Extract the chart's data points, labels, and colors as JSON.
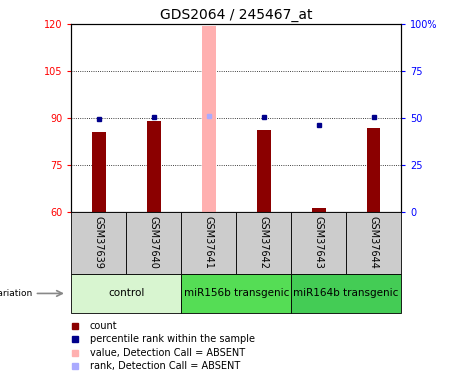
{
  "title": "GDS2064 / 245467_at",
  "samples": [
    "GSM37639",
    "GSM37640",
    "GSM37641",
    "GSM37642",
    "GSM37643",
    "GSM37644"
  ],
  "count_values": [
    85.5,
    89.2,
    119.5,
    86.2,
    61.2,
    87.0
  ],
  "rank_values": [
    49.5,
    50.5,
    51.0,
    50.5,
    46.5,
    50.5
  ],
  "absent_flags": [
    false,
    false,
    true,
    false,
    false,
    false
  ],
  "bar_bottom": 60,
  "ylim_left": [
    60,
    120
  ],
  "ylim_right": [
    0,
    100
  ],
  "yticks_left": [
    60,
    75,
    90,
    105,
    120
  ],
  "yticks_right": [
    0,
    25,
    50,
    75,
    100
  ],
  "ytick_labels_right": [
    "0",
    "25",
    "50",
    "75",
    "100%"
  ],
  "groups": [
    {
      "label": "control",
      "samples": [
        0,
        1
      ],
      "color": "#d8f5d0"
    },
    {
      "label": "miR156b transgenic",
      "samples": [
        2,
        3
      ],
      "color": "#66dd66"
    },
    {
      "label": "miR164b transgenic",
      "samples": [
        4,
        5
      ],
      "color": "#55cc66"
    }
  ],
  "bar_color_normal": "#8b0000",
  "bar_color_absent": "#ffb0b0",
  "rank_color_normal": "#00008b",
  "rank_color_absent": "#aaaaff",
  "bar_width": 0.25,
  "dotted_line_color": "black",
  "title_fontsize": 10,
  "tick_fontsize": 7,
  "label_fontsize": 7,
  "group_fontsize": 7.5,
  "sample_fontsize": 7,
  "legend_fontsize": 7,
  "fig_width": 4.61,
  "fig_height": 3.75,
  "fig_dpi": 100
}
